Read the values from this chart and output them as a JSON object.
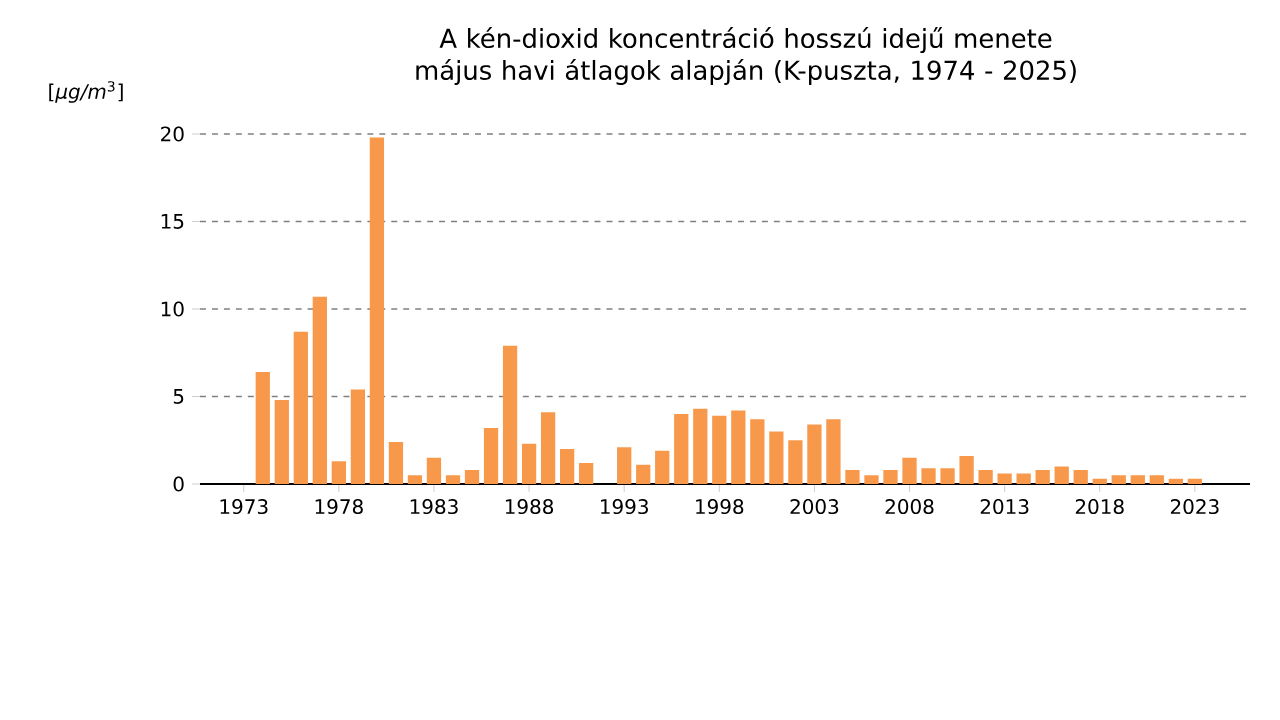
{
  "chart_data": {
    "type": "bar",
    "title": "A kén-dioxid koncentráció hosszú idejű menete május havi átlagok alapján (K-puszta, 1974 - 2025)",
    "ylabel": "[*μg/m*$^{3}$]",
    "x": [
      1974,
      1975,
      1976,
      1977,
      1978,
      1979,
      1980,
      1981,
      1982,
      1983,
      1984,
      1985,
      1986,
      1987,
      1988,
      1989,
      1990,
      1991,
      1992,
      1993,
      1994,
      1995,
      1996,
      1997,
      1998,
      1999,
      2000,
      2001,
      2002,
      2003,
      2004,
      2005,
      2006,
      2007,
      2008,
      2009,
      2010,
      2011,
      2012,
      2013,
      2014,
      2015,
      2016,
      2017,
      2018,
      2019,
      2020,
      2021,
      2022,
      2023
    ],
    "values": [
      6.4,
      4.8,
      8.7,
      10.7,
      1.3,
      5.4,
      19.8,
      2.4,
      0.5,
      1.5,
      0.5,
      0.8,
      3.2,
      7.9,
      2.3,
      4.1,
      2.0,
      1.2,
      null,
      2.1,
      1.1,
      1.9,
      4.0,
      4.3,
      3.9,
      4.2,
      3.7,
      3.0,
      2.5,
      3.4,
      3.7,
      0.8,
      0.5,
      0.8,
      1.5,
      0.9,
      0.9,
      1.6,
      0.8,
      0.6,
      0.6,
      0.8,
      1.0,
      0.8,
      0.3,
      0.5,
      0.5,
      0.5,
      0.3,
      0.3
    ],
    "color": "#f7984a",
    "xlim": [
      1970.7,
      2025.9
    ],
    "xticks": [
      1973,
      1978,
      1983,
      1988,
      1993,
      1998,
      2003,
      2008,
      2013,
      2018,
      2023
    ],
    "ylim": [
      0,
      20
    ],
    "yticks": [
      0,
      5,
      10,
      15,
      20
    ],
    "grid": "y"
  }
}
